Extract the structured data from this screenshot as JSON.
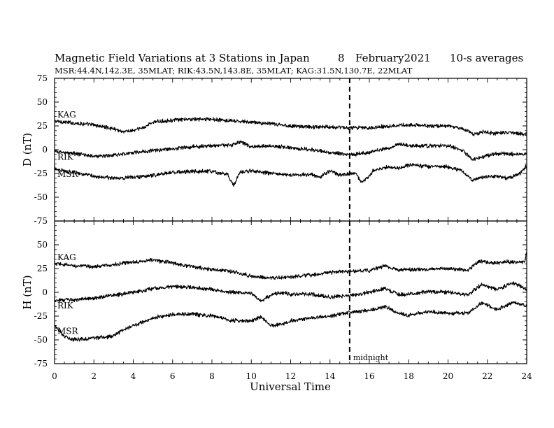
{
  "title": {
    "main": "Magnetic Field Variations at 3 Stations in Japan",
    "day": "8",
    "date": "February2021",
    "averaging": "10-s averages"
  },
  "subtitle": "MSR:44.4N,142.3E, 35MLAT;  RIK:43.5N,143.8E, 35MLAT;  KAG:31.5N,130.7E, 22MLAT",
  "midnight_label": "midnight",
  "chart_data": [
    {
      "type": "line",
      "panel": "D",
      "ylabel": "D (nT)",
      "xlabel": "",
      "xlim": [
        0,
        24
      ],
      "ylim": [
        -75,
        75
      ],
      "y_ticks": [
        75,
        50,
        25,
        0,
        -25,
        -50,
        -75
      ],
      "x_ticks": [
        0,
        2,
        4,
        6,
        8,
        10,
        12,
        14,
        16,
        18,
        20,
        22,
        24
      ],
      "midnight_ut": 15,
      "series": [
        {
          "name": "KAG",
          "x": [
            0,
            1,
            2,
            3,
            3.5,
            4,
            4.5,
            5,
            6,
            7,
            8,
            9,
            10,
            11,
            12,
            13,
            14,
            15,
            16,
            17,
            18,
            19,
            20,
            20.8,
            21.3,
            21.8,
            22.3,
            23,
            24
          ],
          "y": [
            30,
            28,
            26,
            22,
            19,
            20,
            23,
            29,
            31,
            32,
            32,
            30,
            29,
            27,
            25,
            24,
            24,
            23,
            23,
            25,
            26,
            25,
            25,
            22,
            16,
            19,
            17,
            18,
            16
          ]
        },
        {
          "name": "RIK",
          "x": [
            0,
            1,
            2,
            3,
            4,
            5,
            6,
            7,
            8,
            9,
            9.5,
            10,
            11,
            12,
            13,
            14,
            15,
            16,
            16.5,
            17,
            17.5,
            18,
            19,
            20,
            20.7,
            21.2,
            21.7,
            22.2,
            22.8,
            24
          ],
          "y": [
            -2,
            -4,
            -7,
            -6,
            -3,
            -1,
            1,
            3,
            4,
            5,
            8,
            3,
            4,
            2,
            0,
            -3,
            -5,
            -3,
            0,
            2,
            6,
            4,
            4,
            4,
            0,
            -10,
            -8,
            -5,
            -4,
            -5
          ]
        },
        {
          "name": "MSR",
          "x": [
            0,
            1,
            2,
            3,
            4,
            5,
            6,
            7,
            8,
            8.8,
            9.1,
            9.4,
            10,
            11,
            12,
            13,
            13.5,
            14,
            14.5,
            15,
            15.3,
            15.6,
            15.9,
            16.2,
            16.6,
            17,
            17.5,
            18,
            19,
            20,
            20.7,
            21.2,
            21.7,
            22.3,
            23,
            23.6,
            24
          ],
          "y": [
            -20,
            -24,
            -28,
            -30,
            -29,
            -27,
            -24,
            -23,
            -23,
            -26,
            -38,
            -24,
            -22,
            -25,
            -27,
            -26,
            -29,
            -22,
            -27,
            -25,
            -24,
            -35,
            -30,
            -22,
            -20,
            -18,
            -20,
            -16,
            -18,
            -18,
            -22,
            -32,
            -29,
            -28,
            -30,
            -26,
            -17
          ]
        }
      ]
    },
    {
      "type": "line",
      "panel": "H",
      "ylabel": "H (nT)",
      "xlabel": "Universal Time",
      "xlim": [
        0,
        24
      ],
      "ylim": [
        -75,
        75
      ],
      "y_ticks": [
        75,
        50,
        25,
        0,
        -25,
        -50,
        -75
      ],
      "x_ticks": [
        0,
        2,
        4,
        6,
        8,
        10,
        12,
        14,
        16,
        18,
        20,
        22,
        24
      ],
      "midnight_ut": 15,
      "series": [
        {
          "name": "KAG",
          "x": [
            0,
            1,
            2,
            3,
            4,
            5,
            6,
            7,
            8,
            9,
            10,
            11,
            12,
            13,
            14,
            15,
            16,
            16.8,
            17.5,
            18,
            19,
            20,
            21,
            21.6,
            22.3,
            23,
            23.9,
            24
          ],
          "y": [
            30,
            28,
            27,
            29,
            32,
            34,
            31,
            27,
            24,
            22,
            17,
            15,
            16,
            18,
            21,
            22,
            23,
            28,
            23,
            24,
            24,
            25,
            23,
            33,
            31,
            32,
            32,
            44
          ]
        },
        {
          "name": "RIK",
          "x": [
            0,
            1,
            2,
            3,
            4,
            5,
            6,
            7,
            8,
            9,
            10,
            10.5,
            11,
            11.5,
            12,
            13,
            14,
            15,
            16,
            16.8,
            17.5,
            18,
            19,
            20,
            21,
            21.7,
            22.5,
            23.3,
            24
          ],
          "y": [
            -8,
            -8,
            -6,
            -3,
            0,
            4,
            6,
            5,
            3,
            0,
            -1,
            -9,
            -3,
            0,
            -2,
            -2,
            -5,
            -3,
            0,
            4,
            -2,
            -2,
            1,
            0,
            -3,
            8,
            3,
            10,
            3
          ]
        },
        {
          "name": "MSR",
          "x": [
            0,
            0.5,
            1,
            2,
            2.8,
            3.5,
            4,
            5,
            6,
            7,
            8,
            9,
            10,
            10.5,
            11,
            11.5,
            12,
            13,
            14,
            15,
            16,
            16.8,
            17.5,
            18,
            19,
            20,
            21,
            21.7,
            22.5,
            23.3,
            24
          ],
          "y": [
            -35,
            -46,
            -50,
            -48,
            -47,
            -40,
            -35,
            -27,
            -23,
            -23,
            -25,
            -30,
            -30,
            -26,
            -35,
            -34,
            -30,
            -27,
            -25,
            -21,
            -19,
            -15,
            -22,
            -24,
            -20,
            -22,
            -22,
            -11,
            -18,
            -11,
            -14
          ]
        }
      ]
    }
  ]
}
